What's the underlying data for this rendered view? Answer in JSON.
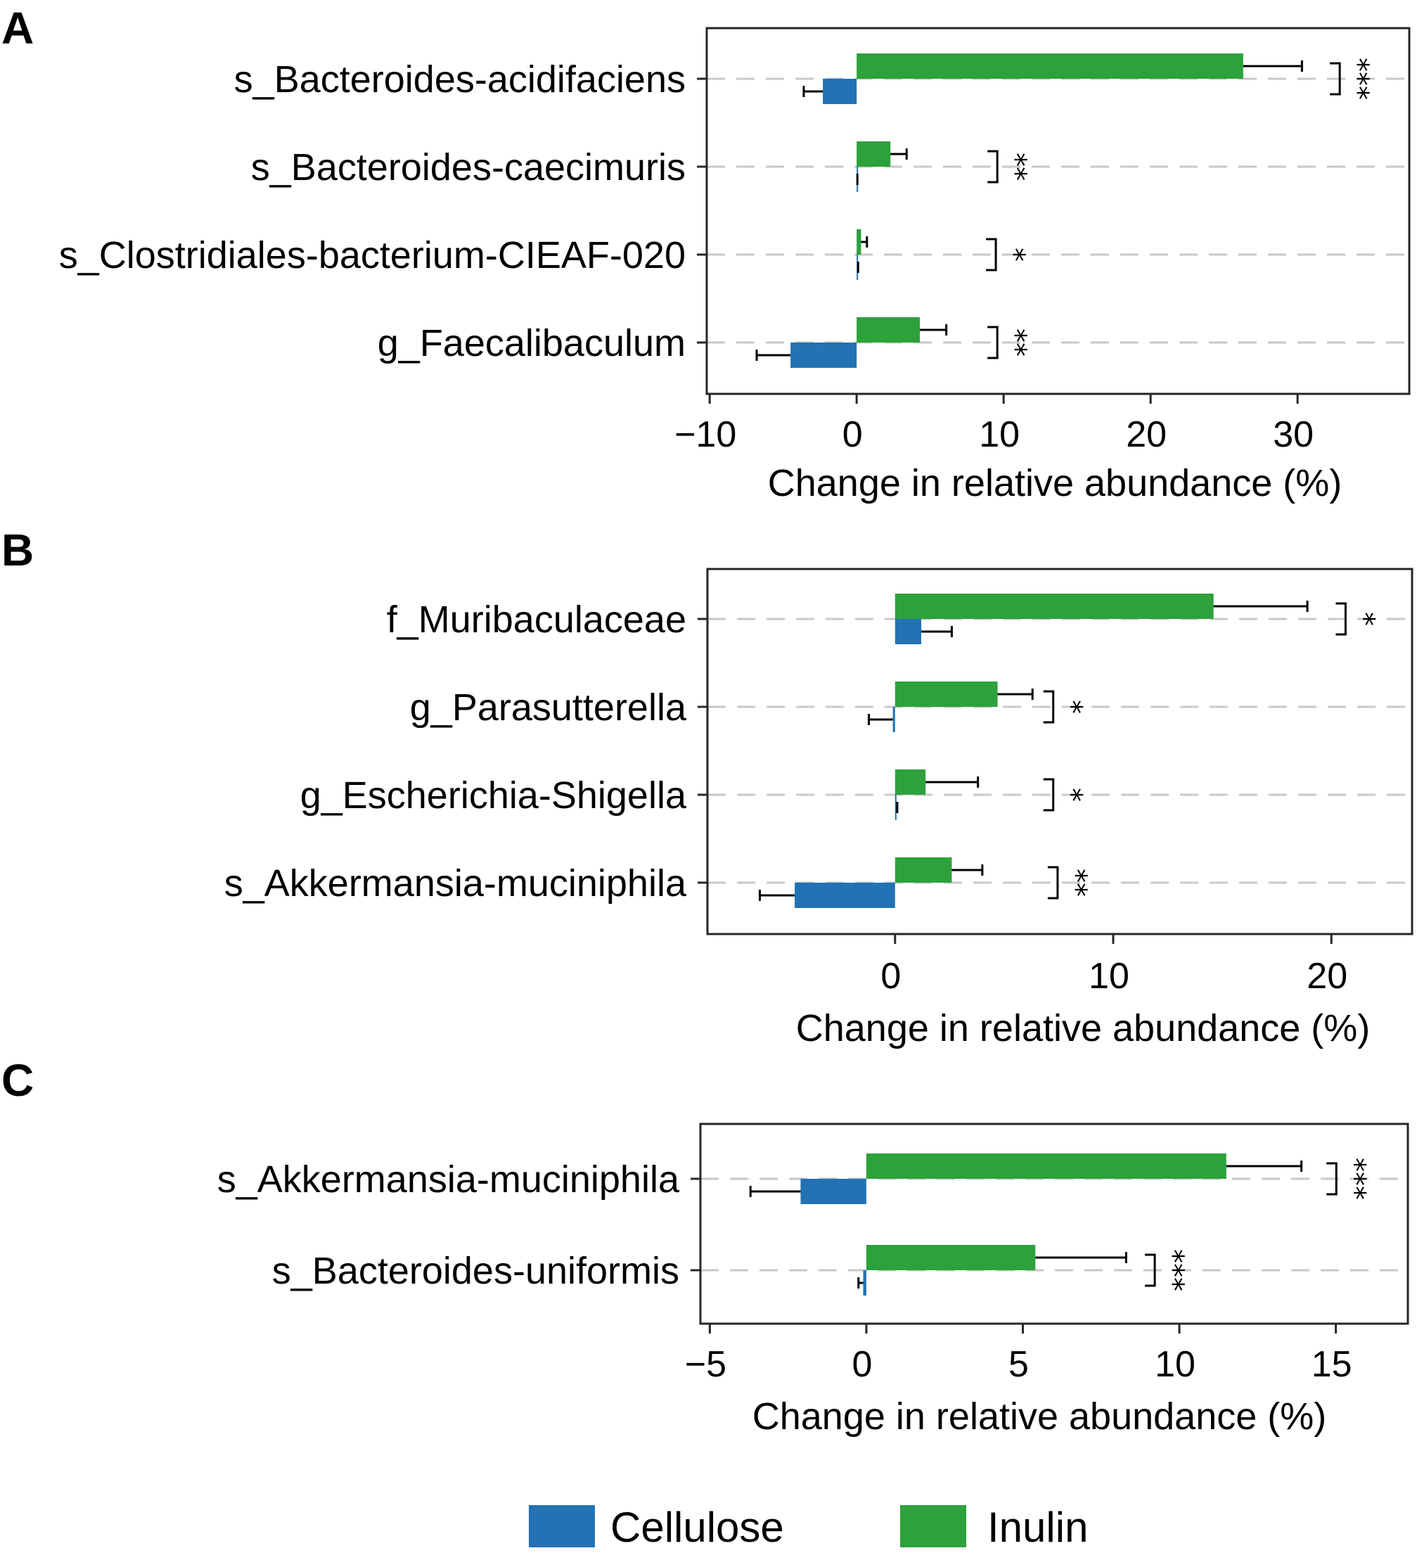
{
  "series_names": [
    "Cellulose",
    "Inulin"
  ],
  "colors": {
    "Cellulose": "#2272b4",
    "Inulin": "#2ca13c",
    "grid": "#c8c8c8",
    "axis": "#262626"
  },
  "chart_data": [
    {
      "type": "bar",
      "orientation": "horizontal",
      "panel": "A",
      "xlabel": "Change in relative abundance (%)",
      "xlim": [
        -10.2,
        37.6
      ],
      "xticks": [
        -10,
        0,
        10,
        20,
        30
      ],
      "xtick_labels": [
        "−10",
        "0",
        "10",
        "20",
        "30"
      ],
      "grid": "horizontal dashed at each category",
      "categories": [
        "s_Bacteroides-acidifaciens",
        "s_Bacteroides-caecimuris",
        "s_Clostridiales-bacterium-CIEAF-020",
        "g_Faecalibaculum"
      ],
      "series": [
        {
          "name": "Cellulose",
          "values": [
            -2.3,
            0.0,
            0.05,
            -4.5
          ],
          "errors": [
            1.3,
            0.05,
            0.05,
            2.3
          ]
        },
        {
          "name": "Inulin",
          "values": [
            26.3,
            2.3,
            0.3,
            4.3
          ],
          "errors": [
            4.0,
            1.1,
            0.4,
            1.8
          ]
        }
      ],
      "significance": [
        "***",
        "**",
        "*",
        "**"
      ],
      "sig_x": [
        32.2,
        8.9,
        8.8,
        8.9
      ]
    },
    {
      "type": "bar",
      "orientation": "horizontal",
      "panel": "B",
      "xlabel": "Change in relative abundance (%)",
      "xlim": [
        -8.6,
        23.7
      ],
      "xticks": [
        0,
        10,
        20
      ],
      "xtick_labels": [
        "0",
        "10",
        "20"
      ],
      "grid": "horizontal dashed at each category",
      "categories": [
        "f_Muribaculaceae",
        "g_Parasutterella",
        "g_Escherichia-Shigella",
        "s_Akkermansia-muciniphila"
      ],
      "series": [
        {
          "name": "Cellulose",
          "values": [
            1.2,
            -0.1,
            0.05,
            -4.6
          ],
          "errors": [
            1.4,
            1.1,
            0.05,
            1.6
          ]
        },
        {
          "name": "Inulin",
          "values": [
            14.6,
            4.7,
            1.4,
            2.6
          ],
          "errors": [
            4.3,
            1.6,
            2.4,
            1.4
          ]
        }
      ],
      "significance": [
        "*",
        "*",
        "*",
        "**"
      ],
      "sig_x": [
        20.2,
        6.8,
        6.8,
        7.0
      ]
    },
    {
      "type": "bar",
      "orientation": "horizontal",
      "panel": "C",
      "xlabel": "Change in relative abundance (%)",
      "xlim": [
        -5.3,
        17.3
      ],
      "xticks": [
        -5,
        0,
        5,
        10,
        15
      ],
      "xtick_labels": [
        "−5",
        "0",
        "5",
        "10",
        "15"
      ],
      "grid": "horizontal dashed at each category",
      "categories": [
        "s_Akkermansia-muciniphila",
        "s_Bacteroides-uniformis"
      ],
      "series": [
        {
          "name": "Cellulose",
          "values": [
            -2.1,
            -0.1
          ],
          "errors": [
            1.6,
            0.15
          ]
        },
        {
          "name": "Inulin",
          "values": [
            11.5,
            5.4
          ],
          "errors": [
            2.4,
            2.9
          ]
        }
      ],
      "significance": [
        "***",
        "***"
      ],
      "sig_x": [
        14.7,
        8.9
      ]
    }
  ],
  "legend": {
    "placement": "bottom-center",
    "items": [
      "Cellulose",
      "Inulin"
    ]
  }
}
